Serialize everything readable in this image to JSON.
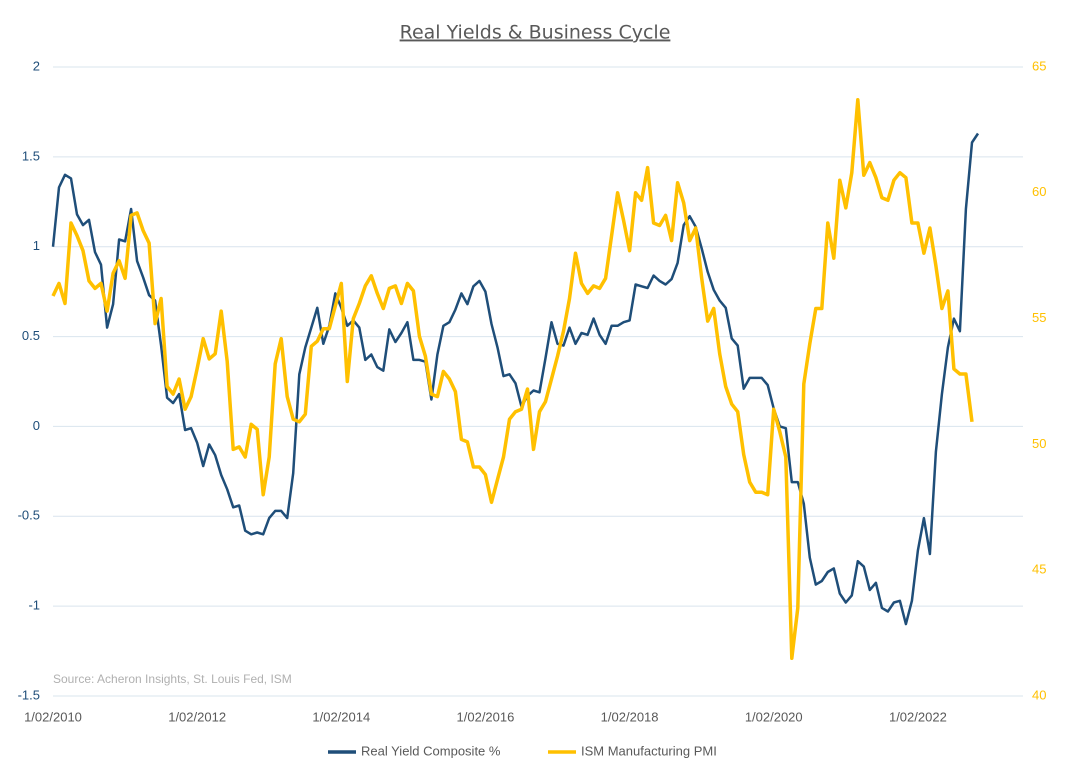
{
  "chart_data": {
    "type": "line",
    "title": "Real Yields & Business Cycle",
    "source": "Source: Acheron Insights, St. Louis Fed, ISM",
    "x": [
      "2010-01",
      "2010-02",
      "2010-03",
      "2010-04",
      "2010-05",
      "2010-06",
      "2010-07",
      "2010-08",
      "2010-09",
      "2010-10",
      "2010-11",
      "2010-12",
      "2011-01",
      "2011-02",
      "2011-03",
      "2011-04",
      "2011-05",
      "2011-06",
      "2011-07",
      "2011-08",
      "2011-09",
      "2011-10",
      "2011-11",
      "2011-12",
      "2012-01",
      "2012-02",
      "2012-03",
      "2012-04",
      "2012-05",
      "2012-06",
      "2012-07",
      "2012-08",
      "2012-09",
      "2012-10",
      "2012-11",
      "2012-12",
      "2013-01",
      "2013-02",
      "2013-03",
      "2013-04",
      "2013-05",
      "2013-06",
      "2013-07",
      "2013-08",
      "2013-09",
      "2013-10",
      "2013-11",
      "2013-12",
      "2014-01",
      "2014-02",
      "2014-03",
      "2014-04",
      "2014-05",
      "2014-06",
      "2014-07",
      "2014-08",
      "2014-09",
      "2014-10",
      "2014-11",
      "2014-12",
      "2015-01",
      "2015-02",
      "2015-03",
      "2015-04",
      "2015-05",
      "2015-06",
      "2015-07",
      "2015-08",
      "2015-09",
      "2015-10",
      "2015-11",
      "2015-12",
      "2016-01",
      "2016-02",
      "2016-03",
      "2016-04",
      "2016-05",
      "2016-06",
      "2016-07",
      "2016-08",
      "2016-09",
      "2016-10",
      "2016-11",
      "2016-12",
      "2017-01",
      "2017-02",
      "2017-03",
      "2017-04",
      "2017-05",
      "2017-06",
      "2017-07",
      "2017-08",
      "2017-09",
      "2017-10",
      "2017-11",
      "2017-12",
      "2018-01",
      "2018-02",
      "2018-03",
      "2018-04",
      "2018-05",
      "2018-06",
      "2018-07",
      "2018-08",
      "2018-09",
      "2018-10",
      "2018-11",
      "2018-12",
      "2019-01",
      "2019-02",
      "2019-03",
      "2019-04",
      "2019-05",
      "2019-06",
      "2019-07",
      "2019-08",
      "2019-09",
      "2019-10",
      "2019-11",
      "2019-12",
      "2020-01",
      "2020-02",
      "2020-03",
      "2020-04",
      "2020-05",
      "2020-06",
      "2020-07",
      "2020-08",
      "2020-09",
      "2020-10",
      "2020-11",
      "2020-12",
      "2021-01",
      "2021-02",
      "2021-03",
      "2021-04",
      "2021-05",
      "2021-06",
      "2021-07",
      "2021-08",
      "2021-09",
      "2021-10",
      "2021-11",
      "2021-12",
      "2022-01",
      "2022-02",
      "2022-03",
      "2022-04",
      "2022-05",
      "2022-06",
      "2022-07",
      "2022-08",
      "2022-09",
      "2022-10",
      "2022-11"
    ],
    "series": [
      {
        "name": "Real Yield Composite %",
        "color": "#1f4e79",
        "axis": "y",
        "values": [
          1.0,
          1.33,
          1.4,
          1.38,
          1.18,
          1.12,
          1.15,
          0.97,
          0.9,
          0.55,
          0.68,
          1.04,
          1.03,
          1.21,
          0.92,
          0.83,
          0.73,
          0.7,
          0.45,
          0.16,
          0.13,
          0.18,
          -0.02,
          -0.01,
          -0.09,
          -0.22,
          -0.1,
          -0.16,
          -0.27,
          -0.35,
          -0.45,
          -0.44,
          -0.58,
          -0.6,
          -0.59,
          -0.6,
          -0.51,
          -0.47,
          -0.47,
          -0.51,
          -0.26,
          0.29,
          0.44,
          0.55,
          0.66,
          0.46,
          0.56,
          0.74,
          0.66,
          0.56,
          0.59,
          0.55,
          0.37,
          0.4,
          0.33,
          0.31,
          0.54,
          0.47,
          0.52,
          0.58,
          0.37,
          0.37,
          0.36,
          0.15,
          0.4,
          0.56,
          0.58,
          0.65,
          0.74,
          0.68,
          0.78,
          0.81,
          0.75,
          0.57,
          0.44,
          0.28,
          0.29,
          0.24,
          0.11,
          0.17,
          0.2,
          0.19,
          0.38,
          0.58,
          0.46,
          0.45,
          0.55,
          0.46,
          0.52,
          0.51,
          0.6,
          0.51,
          0.46,
          0.56,
          0.56,
          0.58,
          0.59,
          0.79,
          0.78,
          0.77,
          0.84,
          0.81,
          0.79,
          0.82,
          0.91,
          1.12,
          1.17,
          1.11,
          0.99,
          0.86,
          0.76,
          0.7,
          0.66,
          0.49,
          0.45,
          0.21,
          0.27,
          0.27,
          0.27,
          0.23,
          0.1,
          0.0,
          -0.01,
          -0.31,
          -0.31,
          -0.43,
          -0.73,
          -0.88,
          -0.86,
          -0.81,
          -0.79,
          -0.93,
          -0.98,
          -0.94,
          -0.75,
          -0.78,
          -0.91,
          -0.87,
          -1.01,
          -1.03,
          -0.98,
          -0.97,
          -1.1,
          -0.97,
          -0.69,
          -0.51,
          -0.71,
          -0.14,
          0.18,
          0.44,
          0.6,
          0.53,
          1.21,
          1.58,
          1.63
        ]
      },
      {
        "name": "ISM Manufacturing PMI",
        "color": "#ffc000",
        "axis": "y2",
        "values": [
          55.9,
          56.4,
          55.6,
          58.8,
          58.3,
          57.7,
          56.5,
          56.2,
          56.4,
          55.3,
          56.8,
          57.3,
          56.6,
          59.1,
          59.2,
          58.5,
          58.0,
          54.8,
          55.8,
          52.3,
          52.0,
          52.6,
          51.4,
          51.9,
          53.0,
          54.2,
          53.4,
          53.6,
          55.3,
          53.3,
          49.8,
          49.9,
          49.5,
          50.8,
          50.6,
          48.0,
          49.5,
          53.2,
          54.2,
          51.9,
          51.0,
          50.9,
          51.2,
          53.9,
          54.1,
          54.6,
          54.6,
          55.5,
          56.4,
          52.5,
          55.0,
          55.6,
          56.3,
          56.7,
          56.0,
          55.4,
          56.2,
          56.3,
          55.6,
          56.4,
          56.1,
          54.3,
          53.5,
          52.0,
          51.9,
          52.9,
          52.6,
          52.1,
          50.2,
          50.1,
          49.1,
          49.1,
          48.8,
          47.7,
          48.6,
          49.5,
          51.0,
          51.3,
          51.4,
          52.2,
          49.8,
          51.3,
          51.7,
          52.6,
          53.5,
          54.5,
          55.8,
          57.6,
          56.4,
          56.0,
          56.3,
          56.2,
          56.6,
          58.3,
          60.0,
          58.9,
          57.7,
          60.0,
          59.7,
          61.0,
          58.8,
          58.7,
          59.1,
          58.1,
          60.4,
          59.6,
          58.1,
          58.6,
          56.6,
          54.9,
          55.4,
          53.6,
          52.3,
          51.6,
          51.3,
          49.6,
          48.5,
          48.1,
          48.1,
          48.0,
          51.4,
          50.5,
          49.5,
          41.5,
          43.5,
          52.4,
          54.0,
          55.4,
          55.4,
          58.8,
          57.4,
          60.5,
          59.4,
          60.8,
          63.7,
          60.7,
          61.2,
          60.6,
          59.8,
          59.7,
          60.5,
          60.8,
          60.6,
          58.8,
          58.8,
          57.6,
          58.6,
          57.1,
          55.4,
          56.1,
          53.0,
          52.8,
          52.8,
          50.9,
          null
        ]
      }
    ],
    "xlim": [
      "2010-01",
      "2023-06"
    ],
    "xticks": [
      {
        "value": "2010-01",
        "label": "1/02/2010"
      },
      {
        "value": "2012-01",
        "label": "1/02/2012"
      },
      {
        "value": "2014-01",
        "label": "1/02/2014"
      },
      {
        "value": "2016-01",
        "label": "1/02/2016"
      },
      {
        "value": "2018-01",
        "label": "1/02/2018"
      },
      {
        "value": "2020-01",
        "label": "1/02/2020"
      },
      {
        "value": "2022-01",
        "label": "1/02/2022"
      }
    ],
    "ylim": [
      -1.5,
      2
    ],
    "yticks": [
      -1.5,
      -1,
      -0.5,
      0,
      0.5,
      1,
      1.5,
      2
    ],
    "y2lim": [
      40,
      65
    ],
    "y2ticks": [
      40,
      45,
      50,
      55,
      60,
      65
    ],
    "grid": true,
    "legend": "bottom"
  }
}
